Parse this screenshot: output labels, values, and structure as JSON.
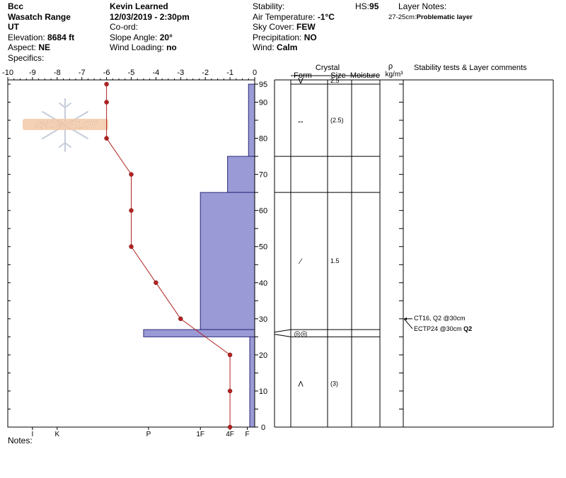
{
  "header": {
    "location": "Bcc",
    "range": "Wasatch Range",
    "state": "UT",
    "elevation_label": "Elevation:",
    "elevation_value": "8684 ft",
    "aspect_label": "Aspect:",
    "aspect_value": "NE",
    "specifics_label": "Specifics:",
    "observer": "Kevin Learned",
    "datetime": "12/03/2019 - 2:30pm",
    "coord_label": "Co-ord:",
    "slope_label": "Slope Angle:",
    "slope_value": "20°",
    "wind_loading_label": "Wind Loading:",
    "wind_loading_value": "no",
    "stability_label": "Stability:",
    "air_temp_label": "Air Temperature:",
    "air_temp_value": "-1°C",
    "sky_label": "Sky Cover:",
    "sky_value": "FEW",
    "precip_label": "Precipitation:",
    "precip_value": "NO",
    "wind_label": "Wind:",
    "wind_value": "Calm",
    "hs_label": "HS:",
    "hs_value": "95",
    "layer_notes_label": "Layer Notes:",
    "layer_note_range": "27-25cm:",
    "layer_note_text": "Problematic layer"
  },
  "logo_text": "SNOW PILOT",
  "notes_label": "Notes:",
  "table": {
    "crystal_label": "Crystal",
    "form_label": "Form",
    "size_label": "Size",
    "moisture_label": "Moisture",
    "rho_symbol": "ρ",
    "density_unit": "kg/m³",
    "comments_label": "Stability tests & Layer comments"
  },
  "chart_data": {
    "type": "line",
    "temp_axis": {
      "range": [
        -10,
        0
      ],
      "ticks": [
        -10,
        -9,
        -8,
        -7,
        -6,
        -5,
        -4,
        -3,
        -2,
        -1,
        0
      ],
      "labels": [
        "-10",
        "-9",
        "-8",
        "-7",
        "-6",
        "-5",
        "-4",
        "-3",
        "-2",
        "-1",
        "0"
      ]
    },
    "height_axis": {
      "range": [
        0,
        95
      ],
      "ticks": [
        0,
        10,
        20,
        30,
        40,
        50,
        60,
        70,
        80,
        90,
        95
      ],
      "labels": [
        "0",
        "10",
        "20",
        "30",
        "40",
        "50",
        "60",
        "70",
        "80",
        "90",
        "95"
      ]
    },
    "hardness_axis": {
      "labels": [
        "I",
        "K",
        "P",
        "1F",
        "4F",
        "F"
      ],
      "temp_positions": [
        -9,
        -8,
        -4.3,
        -2.2,
        -1,
        -0.3
      ]
    },
    "temperature_profile": [
      {
        "height": 95,
        "temp": -6
      },
      {
        "height": 90,
        "temp": -6
      },
      {
        "height": 80,
        "temp": -6
      },
      {
        "height": 70,
        "temp": -5
      },
      {
        "height": 60,
        "temp": -5
      },
      {
        "height": 50,
        "temp": -5
      },
      {
        "height": 40,
        "temp": -4
      },
      {
        "height": 30,
        "temp": -3
      },
      {
        "height": 20,
        "temp": -1
      },
      {
        "height": 10,
        "temp": -1
      },
      {
        "height": 0,
        "temp": -1
      }
    ],
    "hardness_profile": [
      {
        "top": 95,
        "bottom": 75,
        "temp": -0.25
      },
      {
        "top": 75,
        "bottom": 65,
        "temp": -1.1
      },
      {
        "top": 65,
        "bottom": 27,
        "temp": -2.2
      },
      {
        "top": 27,
        "bottom": 25,
        "temp": -4.5
      },
      {
        "top": 25,
        "bottom": 0,
        "temp": -0.2
      }
    ],
    "layers": [
      {
        "top": 95,
        "bottom": 75,
        "form": "ᐯ",
        "size": "2.5"
      },
      {
        "top": 75,
        "bottom": 65,
        "form": "",
        "size": ""
      },
      {
        "top": 65,
        "bottom": 27,
        "form": "",
        "size": ""
      },
      {
        "top": 27,
        "bottom": 25,
        "form": "◎◎",
        "size": ""
      },
      {
        "top": 25,
        "bottom": 0,
        "form": "",
        "size": ""
      }
    ],
    "crystal_markers": [
      {
        "height": 85,
        "form": "↔",
        "size": "(2.5)"
      },
      {
        "height": 46,
        "form": "⁄",
        "size": "1.5"
      },
      {
        "height": 26,
        "form": "◎◎",
        "size": ""
      },
      {
        "height": 12,
        "form": "Λ",
        "size": "(3)"
      }
    ],
    "stability_tests": {
      "height": 30,
      "lines": [
        {
          "text": "CT16, Q2 @30cm",
          "bold": ""
        },
        {
          "text": "ECTP24 @30cm ",
          "bold": "Q2"
        }
      ]
    },
    "colors": {
      "hardness_fill": "#9a9ad6",
      "hardness_stroke": "#2b2b7a",
      "temp_line": "#b22222",
      "temp_marker": "#b22222"
    }
  }
}
